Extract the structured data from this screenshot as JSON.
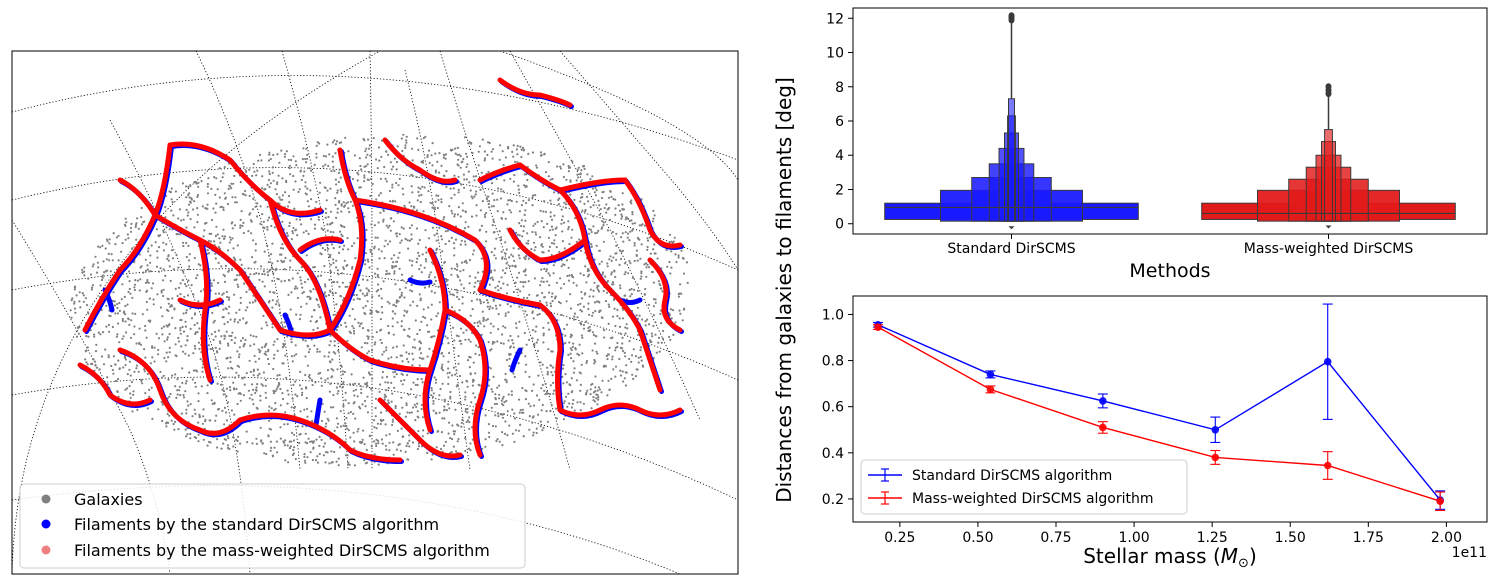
{
  "chart_data": [
    {
      "type": "scatter",
      "subtype": "sky-map",
      "title": "",
      "legend": {
        "placement": "lower-left",
        "entries": [
          {
            "label": "Galaxies",
            "color": "#808080"
          },
          {
            "label": "Filaments by the standard DirSCMS algorithm",
            "color": "#0000ff"
          },
          {
            "label": "Filaments by the mass-weighted DirSCMS algorithm",
            "color": "#f08080"
          }
        ]
      },
      "colors": {
        "galaxies": "#808080",
        "standard": "#0000ff",
        "weighted": "#ff0000"
      }
    },
    {
      "type": "boxen",
      "xlabel": "Methods",
      "ylabel": "Distances from galaxies to filaments [deg]",
      "yticks": [
        0,
        2,
        4,
        6,
        8,
        10,
        12
      ],
      "ylim": [
        -0.6,
        12.6
      ],
      "categories": [
        "Standard DirSCMS",
        "Mass-weighted DirSCMS"
      ],
      "series": [
        {
          "name": "Standard DirSCMS",
          "color": "#1a1aff",
          "median": 0.95,
          "levels": [
            [
              0.25,
              1.2
            ],
            [
              0.12,
              1.95
            ],
            [
              0.06,
              2.7
            ],
            [
              0.03,
              3.5
            ],
            [
              0.02,
              4.4
            ],
            [
              0.01,
              5.3
            ],
            [
              0.005,
              6.3
            ],
            [
              0.002,
              7.3
            ]
          ],
          "whisker_max": 11.8,
          "outliers": [
            11.9,
            12.0,
            12.1,
            12.15
          ],
          "min": -0.15
        },
        {
          "name": "Mass-weighted DirSCMS",
          "color": "#e31a1a",
          "median": 0.6,
          "levels": [
            [
              0.25,
              1.2
            ],
            [
              0.12,
              1.95
            ],
            [
              0.06,
              2.6
            ],
            [
              0.03,
              3.3
            ],
            [
              0.02,
              4.0
            ],
            [
              0.01,
              4.8
            ],
            [
              0.005,
              5.5
            ]
          ],
          "whisker_max": 7.4,
          "outliers": [
            7.6,
            7.8,
            8.0
          ],
          "min": -0.1
        }
      ]
    },
    {
      "type": "line",
      "xlabel": "Stellar mass (M⊙)",
      "ylabel": "Distances from galaxies to filaments [deg]",
      "x_offset_label": "1e11",
      "xticks": [
        "0.25",
        "0.50",
        "0.75",
        "1.00",
        "1.25",
        "1.50",
        "1.75",
        "2.00"
      ],
      "xtick_values": [
        0.25,
        0.5,
        0.75,
        1.0,
        1.25,
        1.5,
        1.75,
        2.0
      ],
      "xlim": [
        0.1,
        2.13
      ],
      "yticks": [
        "0.2",
        "0.4",
        "0.6",
        "0.8",
        "1.0"
      ],
      "ytick_values": [
        0.2,
        0.4,
        0.6,
        0.8,
        1.0
      ],
      "ylim": [
        0.1,
        1.08
      ],
      "legend": {
        "placement": "lower-left"
      },
      "series": [
        {
          "name": "Standard DirSCMS algorithm",
          "color": "#0000ff",
          "x": [
            0.18,
            0.54,
            0.9,
            1.26,
            1.62,
            1.98
          ],
          "y": [
            0.955,
            0.74,
            0.625,
            0.5,
            0.795,
            0.195
          ],
          "yerr": [
            0.01,
            0.015,
            0.03,
            0.055,
            0.25,
            0.04
          ]
        },
        {
          "name": "Mass-weighted DirSCMS algorithm",
          "color": "#ff0000",
          "x": [
            0.18,
            0.54,
            0.9,
            1.26,
            1.62,
            1.98
          ],
          "y": [
            0.945,
            0.675,
            0.51,
            0.38,
            0.345,
            0.19
          ],
          "yerr": [
            0.01,
            0.015,
            0.025,
            0.03,
            0.06,
            0.04
          ]
        }
      ]
    }
  ]
}
